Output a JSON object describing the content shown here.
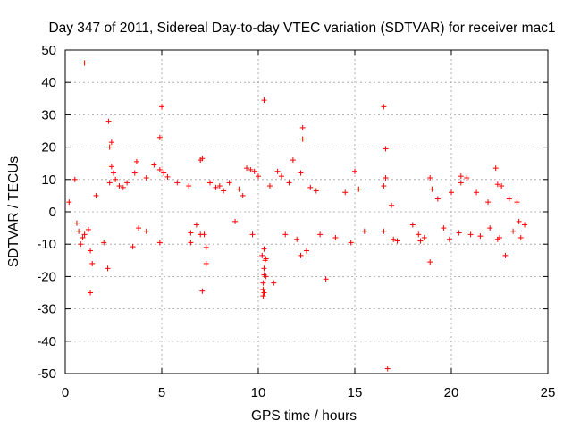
{
  "chart_data": {
    "type": "scatter",
    "title": "Day 347 of 2011, Sidereal Day-to-day VTEC variation (SDTVAR) for receiver mac1",
    "xlabel": "GPS time / hours",
    "ylabel": "SDTVAR / TECUs",
    "xlim": [
      0,
      25
    ],
    "ylim": [
      -50,
      50
    ],
    "xticks": [
      0,
      5,
      10,
      15,
      20,
      25
    ],
    "yticks": [
      -50,
      -40,
      -30,
      -20,
      -10,
      0,
      10,
      20,
      30,
      40,
      50
    ],
    "grid": true,
    "marker": "+",
    "color": "#ff0000",
    "series": [
      {
        "name": "mac1",
        "points": [
          [
            1.0,
            46
          ],
          [
            4.9,
            23
          ],
          [
            5.0,
            32.5
          ],
          [
            10.3,
            34.5
          ],
          [
            12.3,
            26
          ],
          [
            12.3,
            22.5
          ],
          [
            16.5,
            32.5
          ],
          [
            16.6,
            19.5
          ],
          [
            16.7,
            -48.5
          ],
          [
            2.25,
            28
          ],
          [
            2.3,
            20
          ],
          [
            2.4,
            21.5
          ],
          [
            1.3,
            -25
          ],
          [
            7.1,
            -24.5
          ],
          [
            7.0,
            16
          ],
          [
            7.1,
            16.5
          ],
          [
            11.8,
            16
          ],
          [
            10.8,
            -22
          ],
          [
            13.5,
            -20.8
          ],
          [
            2.2,
            -17.5
          ],
          [
            1.4,
            -16
          ],
          [
            7.3,
            -16
          ],
          [
            18.9,
            -15.5
          ],
          [
            22.3,
            13.5
          ],
          [
            15.0,
            12.5
          ],
          [
            0.5,
            10
          ],
          [
            3.7,
            15.5
          ],
          [
            12.2,
            -13.5
          ],
          [
            22.8,
            -13.5
          ],
          [
            3.5,
            -10.8
          ],
          [
            22.4,
            -8.5
          ],
          [
            20.8,
            10.5
          ],
          [
            18.9,
            10.5
          ],
          [
            22.4,
            8.5
          ],
          [
            14.8,
            -9.5
          ],
          [
            4.9,
            -9.5
          ],
          [
            6.5,
            -9.5
          ],
          [
            20.5,
            11
          ],
          [
            10.25,
            -26
          ],
          [
            10.3,
            -25
          ],
          [
            10.25,
            -22
          ],
          [
            10.3,
            -19.5
          ],
          [
            10.3,
            -17.5
          ],
          [
            10.35,
            -15
          ],
          [
            10.2,
            -13.5
          ],
          [
            10.3,
            -11.5
          ],
          [
            10.4,
            -20
          ],
          [
            10.25,
            -24
          ],
          [
            10.4,
            -14.5
          ],
          [
            2.4,
            14
          ],
          [
            2.5,
            12
          ],
          [
            2.6,
            10
          ],
          [
            4.6,
            14.5
          ],
          [
            4.9,
            13
          ],
          [
            5.1,
            12
          ],
          [
            3.6,
            12
          ],
          [
            5.3,
            10.8
          ],
          [
            9.4,
            13.5
          ],
          [
            9.6,
            13
          ],
          [
            9.8,
            12.5
          ],
          [
            10.0,
            11
          ],
          [
            11.0,
            12.5
          ],
          [
            11.2,
            11
          ],
          [
            12.2,
            12
          ],
          [
            16.6,
            10.5
          ],
          [
            16.5,
            8
          ],
          [
            20.5,
            9
          ],
          [
            23.4,
            3
          ],
          [
            23.2,
            -6
          ],
          [
            23.8,
            -4
          ],
          [
            0.7,
            -6
          ],
          [
            0.8,
            -10
          ],
          [
            1.2,
            -5.5
          ],
          [
            1.3,
            -12
          ],
          [
            0.9,
            -8
          ],
          [
            6.5,
            -6.5
          ],
          [
            7.2,
            -7
          ],
          [
            7.3,
            -11
          ],
          [
            19.6,
            -5
          ],
          [
            19.9,
            -8.5
          ],
          [
            20.4,
            -6.5
          ],
          [
            21.0,
            -7
          ],
          [
            21.5,
            -7.5
          ],
          [
            17.0,
            -8.5
          ],
          [
            16.5,
            -6
          ],
          [
            14.0,
            -8
          ],
          [
            13.2,
            -7
          ],
          [
            3.8,
            -5
          ],
          [
            8.8,
            -3
          ],
          [
            9.7,
            -7
          ],
          [
            22.0,
            -5
          ],
          [
            23.5,
            -3
          ],
          [
            18.4,
            -9
          ],
          [
            18.6,
            -8
          ],
          [
            18.3,
            -7
          ],
          [
            11.4,
            -7
          ],
          [
            12.5,
            -12
          ],
          [
            15.5,
            -6
          ],
          [
            19.3,
            4
          ],
          [
            21.3,
            6
          ],
          [
            21.9,
            3
          ],
          [
            22.6,
            8
          ],
          [
            14.5,
            6
          ],
          [
            15.2,
            7
          ],
          [
            13.0,
            6.5
          ],
          [
            12.7,
            7.5
          ],
          [
            8.2,
            6.5
          ],
          [
            6.4,
            8
          ],
          [
            7.5,
            9
          ],
          [
            7.8,
            7.5
          ],
          [
            8.0,
            8
          ],
          [
            8.5,
            9
          ],
          [
            9.0,
            7
          ],
          [
            3.2,
            9
          ],
          [
            4.2,
            10.5
          ],
          [
            3.0,
            7.5
          ],
          [
            2.8,
            8
          ],
          [
            1.6,
            5
          ],
          [
            0.2,
            3
          ],
          [
            0.6,
            -3.5
          ],
          [
            1.0,
            -7
          ],
          [
            2.0,
            -9.5
          ],
          [
            2.3,
            9
          ],
          [
            4.2,
            -6
          ],
          [
            6.8,
            -4
          ],
          [
            7.0,
            -7
          ],
          [
            17.2,
            -9
          ],
          [
            18.0,
            -4
          ],
          [
            19.0,
            7
          ],
          [
            20.0,
            6
          ],
          [
            22.5,
            -8
          ],
          [
            23.0,
            4
          ],
          [
            23.6,
            -8
          ],
          [
            16.9,
            2
          ],
          [
            12.0,
            -8.5
          ],
          [
            11.6,
            9
          ],
          [
            10.6,
            8
          ],
          [
            9.2,
            5
          ],
          [
            5.8,
            9
          ]
        ]
      }
    ]
  }
}
